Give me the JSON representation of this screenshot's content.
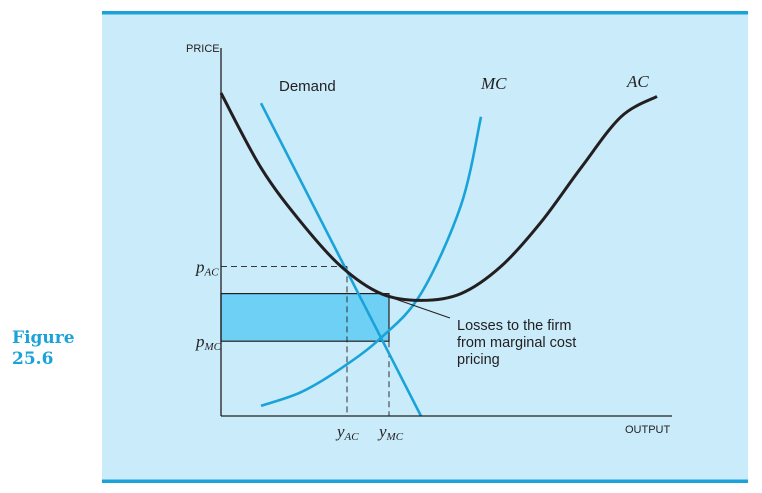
{
  "figure": {
    "label_line1": "Figure",
    "label_line2": "25.6"
  },
  "colors": {
    "panel_bg": "#c9ebfa",
    "frame_accent": "#1aa3d9",
    "curve_black": "#231f20",
    "curve_blue": "#1aa3d9",
    "loss_fill": "#6fd0f5"
  },
  "chart_data": {
    "type": "line",
    "title": "",
    "xlabel": "OUTPUT",
    "ylabel": "PRICE",
    "xlim": [
      0,
      12
    ],
    "ylim": [
      0,
      10
    ],
    "grid": false,
    "series": [
      {
        "name": "Demand",
        "x": [
          1,
          5
        ],
        "y": [
          9.2,
          0
        ]
      },
      {
        "name": "MC",
        "x": [
          1,
          2,
          3,
          4,
          5,
          6,
          6.5
        ],
        "y": [
          0.3,
          0.7,
          1.4,
          2.3,
          3.6,
          6.2,
          8.8
        ]
      },
      {
        "name": "AC",
        "x": [
          0,
          1,
          2,
          3,
          4,
          5,
          6,
          7,
          8,
          9,
          10,
          10.9
        ],
        "y": [
          9.5,
          7.3,
          5.7,
          4.4,
          3.6,
          3.4,
          3.6,
          4.4,
          5.7,
          7.3,
          8.8,
          9.4
        ]
      }
    ],
    "ticks": {
      "y": [
        {
          "value": 4.4,
          "label": "p",
          "sub": "AC"
        },
        {
          "value": 2.2,
          "label": "p",
          "sub": "MC"
        }
      ],
      "x": [
        {
          "value": 3.15,
          "label": "y",
          "sub": "AC"
        },
        {
          "value": 4.2,
          "label": "y",
          "sub": "MC"
        }
      ]
    },
    "loss_rect": {
      "x0": 0,
      "x1": 4.2,
      "y0": 2.2,
      "y1": 3.6
    },
    "annotation": {
      "lines": [
        "Losses to the firm",
        "from marginal cost",
        "pricing"
      ]
    }
  }
}
